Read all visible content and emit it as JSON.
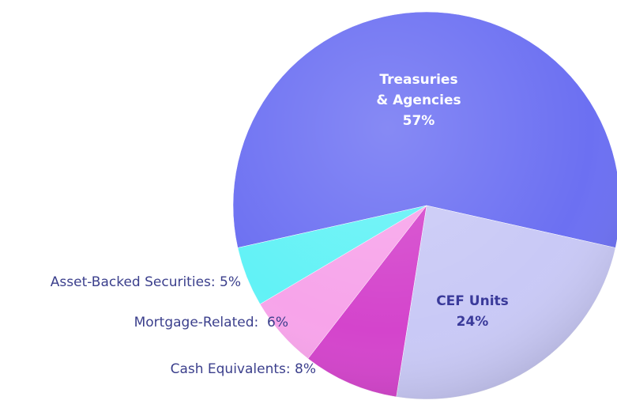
{
  "chart_data": {
    "type": "pie",
    "labels": [
      [
        "Treasuries",
        "& Agencies",
        "57%"
      ],
      [
        "CEF Units",
        "24%"
      ],
      [
        "Cash Equivalents: 8%"
      ],
      [
        "Mortgage-Related:  6%"
      ],
      [
        "Asset-Backed Securities: 5%"
      ]
    ],
    "values": [
      57,
      24,
      8,
      6,
      5
    ],
    "colors": [
      "#6c70f2",
      "#c9c9f6",
      "#d444cc",
      "#f7a4ea",
      "#62f2f6"
    ]
  }
}
